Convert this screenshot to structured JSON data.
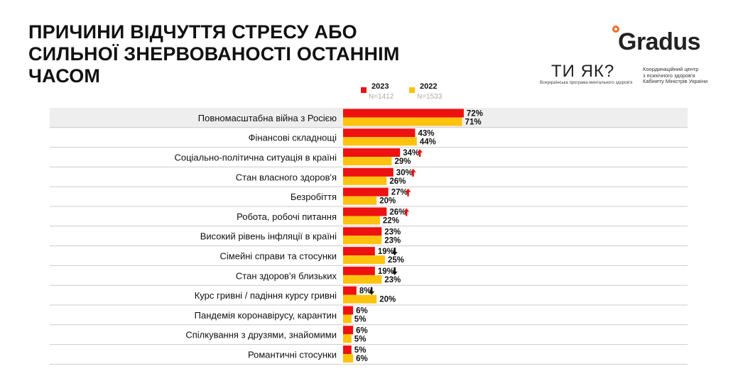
{
  "title": {
    "line1": "ПРИЧИНИ ВІДЧУТТЯ СТРЕСУ АБО",
    "line2": "СИЛЬНОЇ ЗНЕРВОВАНОСТІ ОСТАННІМ ЧАСОМ"
  },
  "logos": {
    "gradus": "Gradus",
    "tiyak": "ТИ ЯК?",
    "tiyak_sub": "Всеукраїнська програма ментального здоров'я",
    "coord_lines": [
      "Координаційний центр",
      "з психічного здоров'я",
      "Кабінету Міністрів України"
    ]
  },
  "legend": [
    {
      "year": "2023",
      "n": "N=1412",
      "color": "#ee1111"
    },
    {
      "year": "2022",
      "n": "N=1533",
      "color": "#ffc20e"
    }
  ],
  "colors": {
    "bar_2023": "#ee1111",
    "bar_2022": "#ffc20e",
    "highlight_row": "#eeeeee",
    "separator": "#cccccc",
    "arrow_up": "#ee1111",
    "arrow_down": "#111111"
  },
  "chart_data": {
    "type": "bar",
    "orientation": "horizontal",
    "categories": [
      "Повномасштабна війна з Росією",
      "Фінансові складнощі",
      "Соціально-політична ситуація в країні",
      "Стан власного здоров'я",
      "Безробіття",
      "Робота, робочі питання",
      "Високий рівень інфляції в країні",
      "Сімейні справи та стосунки",
      "Стан здоров'я близьких",
      "Курс гривні / падіння курсу гривні",
      "Пандемія коронавірусу, карантин",
      "Спілкування з друзями, знайомими",
      "Романтичні стосунки"
    ],
    "series": [
      {
        "name": "2023",
        "values": [
          72,
          43,
          34,
          30,
          27,
          26,
          23,
          19,
          19,
          8,
          6,
          6,
          5
        ]
      },
      {
        "name": "2022",
        "values": [
          71,
          44,
          29,
          26,
          20,
          22,
          23,
          25,
          23,
          20,
          5,
          5,
          6
        ]
      }
    ],
    "labels_2023": [
      "72%",
      "43%",
      "34%",
      "30%",
      "27%",
      "26%",
      "23%",
      "19%",
      "19%",
      "8%",
      "6%",
      "6%",
      "5%"
    ],
    "labels_2022": [
      "71%",
      "44%",
      "29%",
      "26%",
      "20%",
      "22%",
      "23%",
      "25%",
      "23%",
      "20%",
      "5%",
      "5%",
      "6%"
    ],
    "change_arrows": [
      "",
      "",
      "up",
      "up",
      "up",
      "up",
      "",
      "down",
      "down",
      "down",
      "",
      "",
      ""
    ],
    "unit": "%",
    "xlim": [
      0,
      100
    ],
    "grid": false,
    "legend_position": "top"
  }
}
